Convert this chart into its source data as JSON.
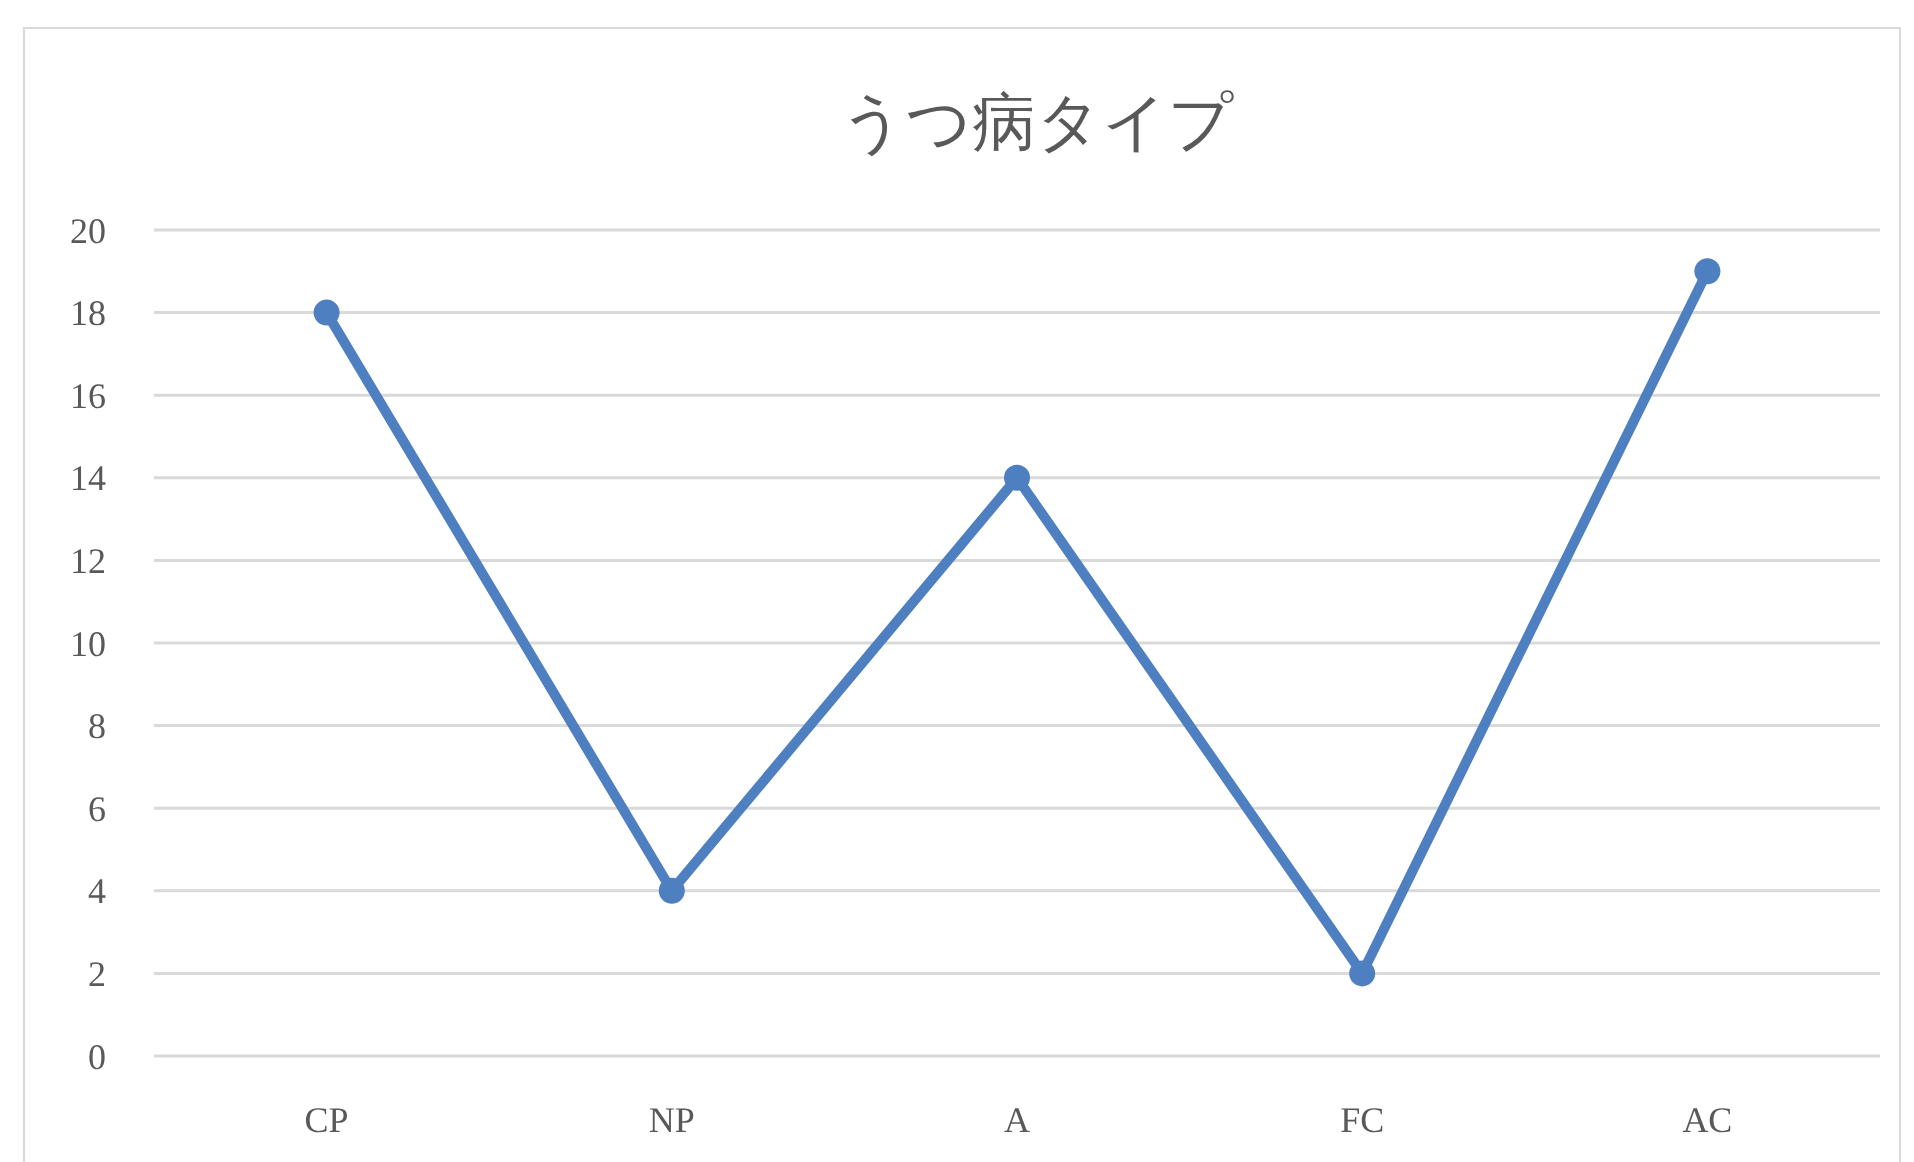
{
  "chart_data": {
    "type": "line",
    "title": "うつ病タイプ",
    "categories": [
      "CP",
      "NP",
      "A",
      "FC",
      "AC"
    ],
    "series": [
      {
        "color": "#4e7fc0",
        "values": [
          18,
          4,
          14,
          2,
          19
        ]
      }
    ],
    "ylim": [
      0,
      20
    ],
    "yticks": [
      0,
      2,
      4,
      6,
      8,
      10,
      12,
      14,
      16,
      18,
      20
    ],
    "grid": "y",
    "marker": "circle",
    "line_style": "solid"
  }
}
